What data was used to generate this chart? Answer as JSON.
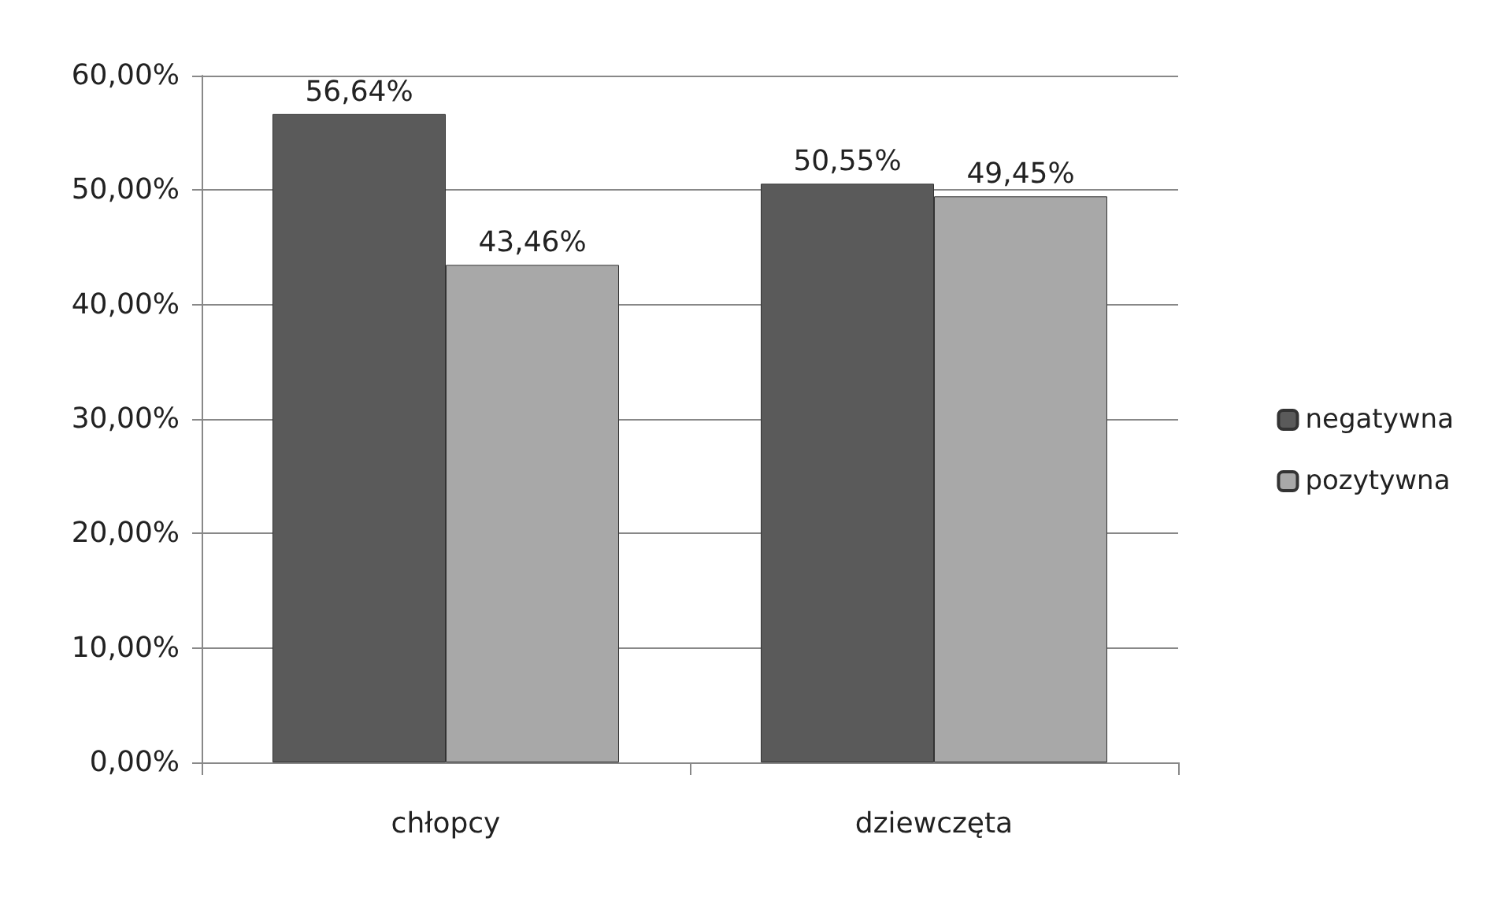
{
  "chart_data": {
    "type": "bar",
    "categories": [
      "chłopcy",
      "dziewczęta"
    ],
    "series": [
      {
        "name": "negatywna",
        "color": "#5a5a5a",
        "values": [
          56.64,
          50.55
        ],
        "value_labels": [
          "56,64%",
          "50,55%"
        ]
      },
      {
        "name": "pozytywna",
        "color": "#a8a8a8",
        "values": [
          43.46,
          49.45
        ],
        "value_labels": [
          "43,46%",
          "49,45%"
        ]
      }
    ],
    "ylim": [
      0,
      60
    ],
    "yticks": [
      {
        "value": 0,
        "label": "0,00%"
      },
      {
        "value": 10,
        "label": "10,00%"
      },
      {
        "value": 20,
        "label": "20,00%"
      },
      {
        "value": 30,
        "label": "30,00%"
      },
      {
        "value": 40,
        "label": "40,00%"
      },
      {
        "value": 50,
        "label": "50,00%"
      },
      {
        "value": 60,
        "label": "60,00%"
      }
    ],
    "grid": "y",
    "legend": "right"
  }
}
